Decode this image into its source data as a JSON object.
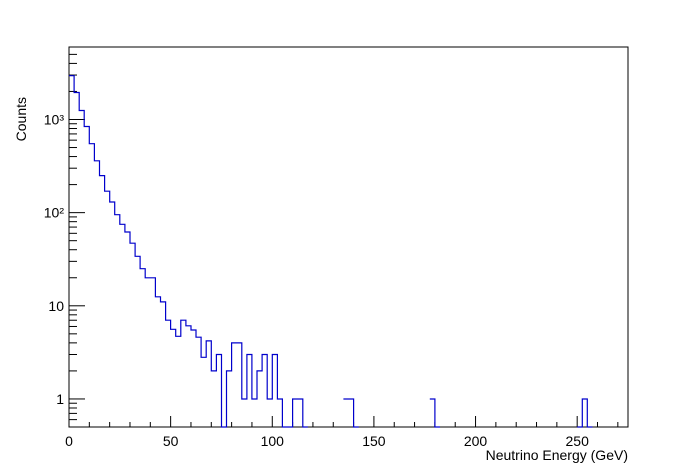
{
  "chart_data": {
    "type": "histogram",
    "title": "",
    "xlabel": "Neutrino Energy (GeV)",
    "ylabel": "Counts",
    "xlim": [
      0,
      275
    ],
    "ylim": [
      0.5,
      6000
    ],
    "yscale": "log",
    "grid": false,
    "legend": "none",
    "line_color": "#0000cc",
    "bin_width": 2.5,
    "x_ticks": [
      {
        "value": 0,
        "label": "0"
      },
      {
        "value": 50,
        "label": "50"
      },
      {
        "value": 100,
        "label": "100"
      },
      {
        "value": 150,
        "label": "150"
      },
      {
        "value": 200,
        "label": "200"
      },
      {
        "value": 250,
        "label": "250"
      }
    ],
    "y_ticks": [
      {
        "value": 1,
        "label": "1"
      },
      {
        "value": 10,
        "label": "10"
      },
      {
        "value": 100,
        "label": "10²"
      },
      {
        "value": 1000,
        "label": "10³"
      }
    ],
    "bins": [
      [
        0,
        2950
      ],
      [
        2.5,
        1950
      ],
      [
        5,
        1250
      ],
      [
        7.5,
        840
      ],
      [
        10,
        550
      ],
      [
        12.5,
        360
      ],
      [
        15,
        250
      ],
      [
        17.5,
        170
      ],
      [
        20,
        130
      ],
      [
        22.5,
        95
      ],
      [
        25,
        75
      ],
      [
        27.5,
        62
      ],
      [
        30,
        47
      ],
      [
        32.5,
        34
      ],
      [
        35,
        25
      ],
      [
        37.5,
        20
      ],
      [
        40,
        20
      ],
      [
        42.5,
        12.5
      ],
      [
        45,
        11
      ],
      [
        47.5,
        7
      ],
      [
        50,
        5.6
      ],
      [
        52.5,
        4.7
      ],
      [
        55,
        7.0
      ],
      [
        57.5,
        6.1
      ],
      [
        60,
        5.5
      ],
      [
        62.5,
        4.6
      ],
      [
        65,
        2.8
      ],
      [
        67.5,
        4.2
      ],
      [
        70,
        2.0
      ],
      [
        72.5,
        3.0
      ],
      [
        75,
        0.5
      ],
      [
        77.5,
        2.0
      ],
      [
        80,
        4.0
      ],
      [
        82.5,
        4.0
      ],
      [
        85,
        1.0
      ],
      [
        87.5,
        3.0
      ],
      [
        90,
        1.0
      ],
      [
        92.5,
        2.0
      ],
      [
        95,
        3.0
      ],
      [
        97.5,
        1.0
      ],
      [
        100,
        3.0
      ],
      [
        102.5,
        1.0
      ],
      [
        105,
        0.5
      ],
      [
        107.5,
        0.5
      ],
      [
        110,
        1.0
      ],
      [
        112.5,
        1.0
      ],
      [
        115,
        0.5
      ],
      [
        135,
        1.0
      ],
      [
        137.5,
        1.0
      ],
      [
        140,
        0.5
      ],
      [
        177.5,
        1.0
      ],
      [
        180,
        0.5
      ],
      [
        250,
        0.5
      ],
      [
        252.5,
        1.0
      ],
      [
        255,
        0.5
      ]
    ]
  }
}
